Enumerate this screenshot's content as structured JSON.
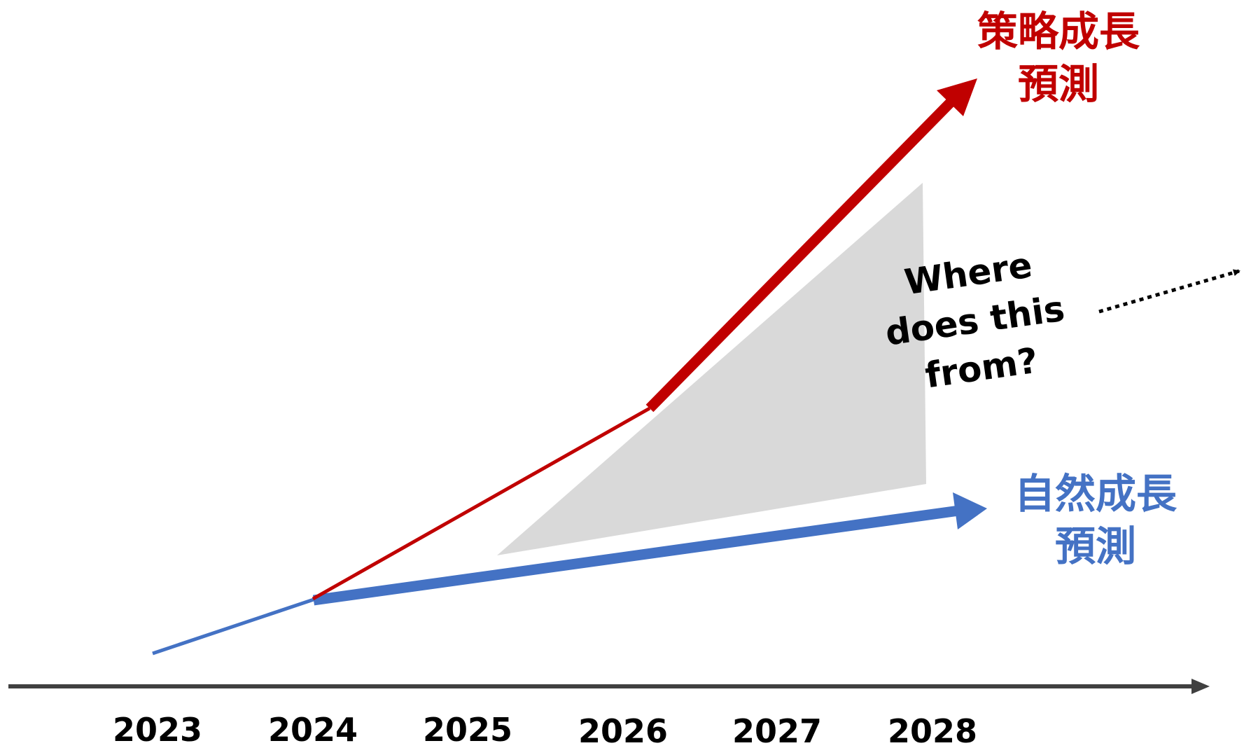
{
  "timeline": {
    "years": [
      "2023",
      "2024",
      "2025",
      "2026",
      "2027",
      "2028"
    ]
  },
  "strategic_forecast": {
    "line1": "策略成長",
    "line2": "預測",
    "color": "#c00000"
  },
  "natural_forecast": {
    "line1": "自然成長",
    "line2": "預測",
    "color": "#4472c4"
  },
  "gap": {
    "color": "#d9d9d9",
    "question": {
      "line1": "Where",
      "line2": "does this",
      "line3": "from?"
    }
  },
  "axis": {
    "color": "#404040"
  }
}
